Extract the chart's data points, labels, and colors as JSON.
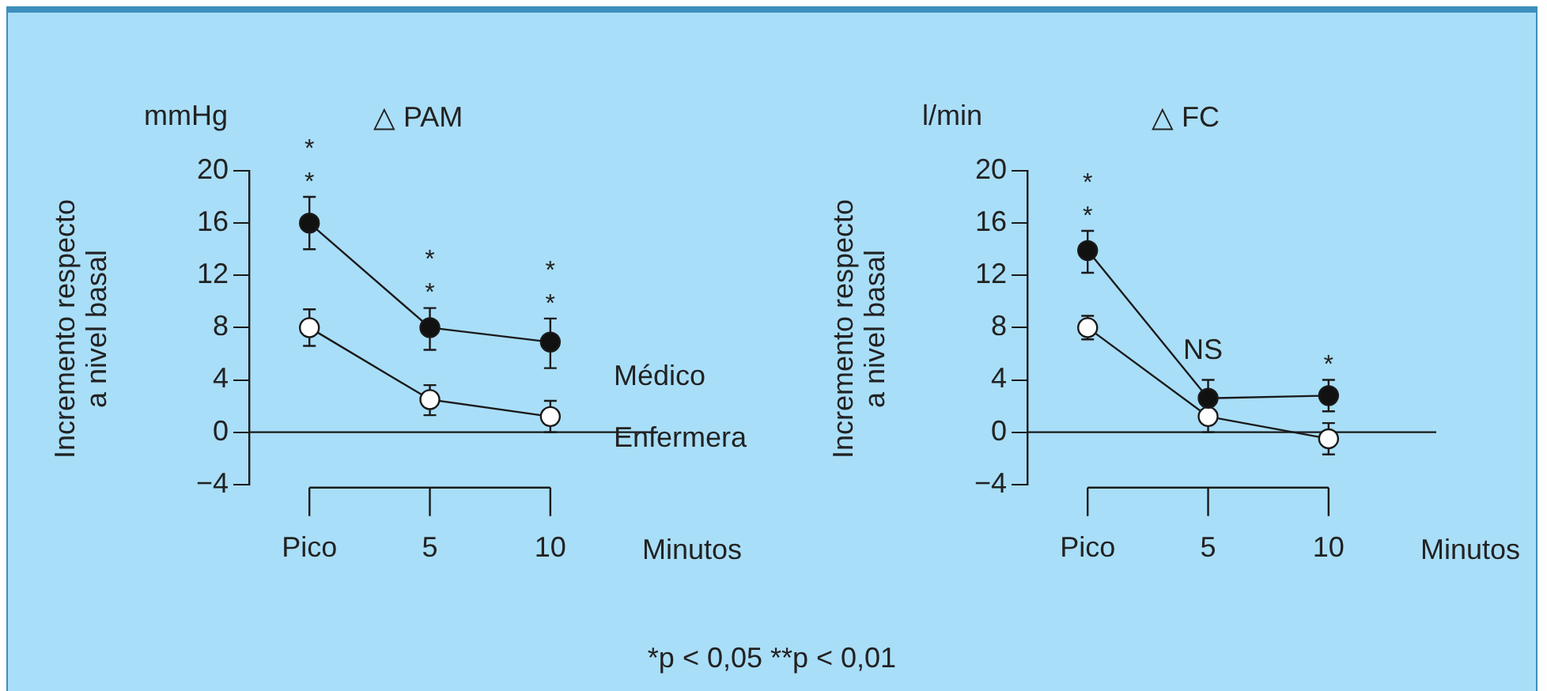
{
  "chart_data": [
    {
      "type": "line",
      "title": "△ PAM",
      "ylabel": "Incremento respecto a nivel basal",
      "xlabel": "Minutos",
      "categories": [
        "Pico",
        "5",
        "10"
      ],
      "series": [
        {
          "name": "Médico",
          "color": "#111111",
          "values": [
            16,
            8,
            6.9
          ],
          "errors": [
            [
              14,
              18
            ],
            [
              6.3,
              9.5
            ],
            [
              4.9,
              8.7
            ]
          ]
        },
        {
          "name": "Enfermera",
          "color": "#ffffff",
          "values": [
            8,
            2.5,
            1.2
          ],
          "errors": [
            [
              6.6,
              9.4
            ],
            [
              1.3,
              3.6
            ],
            [
              0,
              2.4
            ]
          ]
        }
      ],
      "ylim": [
        -4,
        20
      ],
      "yticks": [
        -4,
        0,
        4,
        8,
        12,
        16,
        20
      ],
      "marker": "circle",
      "line_style": "solid",
      "grid": false,
      "legend": false,
      "ref_lines": [
        {
          "axis": "y",
          "value": 0
        }
      ],
      "annotations": [
        "mmHg",
        "*p < 0,05   **p < 0,01",
        {
          "text": "**",
          "x": "Pico",
          "y": 16
        },
        {
          "text": "**",
          "x": "5",
          "y": 8
        },
        {
          "text": "**",
          "x": "10",
          "y": 6.9
        }
      ]
    },
    {
      "type": "line",
      "title": "△ FC",
      "ylabel": "Incremento respecto a nivel basal",
      "xlabel": "Minutos",
      "categories": [
        "Pico",
        "5",
        "10"
      ],
      "series": [
        {
          "color": "#111111",
          "values": [
            13.9,
            2.6,
            2.8
          ],
          "errors": [
            [
              12.2,
              15.4
            ],
            [
              2.6,
              4.0
            ],
            [
              1.6,
              4.0
            ]
          ]
        },
        {
          "color": "#ffffff",
          "values": [
            8,
            1.2,
            -0.5
          ],
          "errors": [
            [
              7.1,
              8.9
            ],
            [
              0,
              2.0
            ],
            [
              -1.7,
              0.7
            ]
          ]
        }
      ],
      "ylim": [
        -4,
        20
      ],
      "yticks": [
        -4,
        0,
        4,
        8,
        12,
        16,
        20
      ],
      "marker": "circle",
      "line_style": "solid",
      "grid": false,
      "legend": false,
      "ref_lines": [
        {
          "axis": "y",
          "value": 0
        }
      ],
      "annotations": [
        "l/min",
        "NS",
        {
          "text": "**",
          "x": "Pico",
          "y": 13.9
        },
        {
          "text": "*",
          "x": "10",
          "y": 2.8
        }
      ]
    }
  ]
}
